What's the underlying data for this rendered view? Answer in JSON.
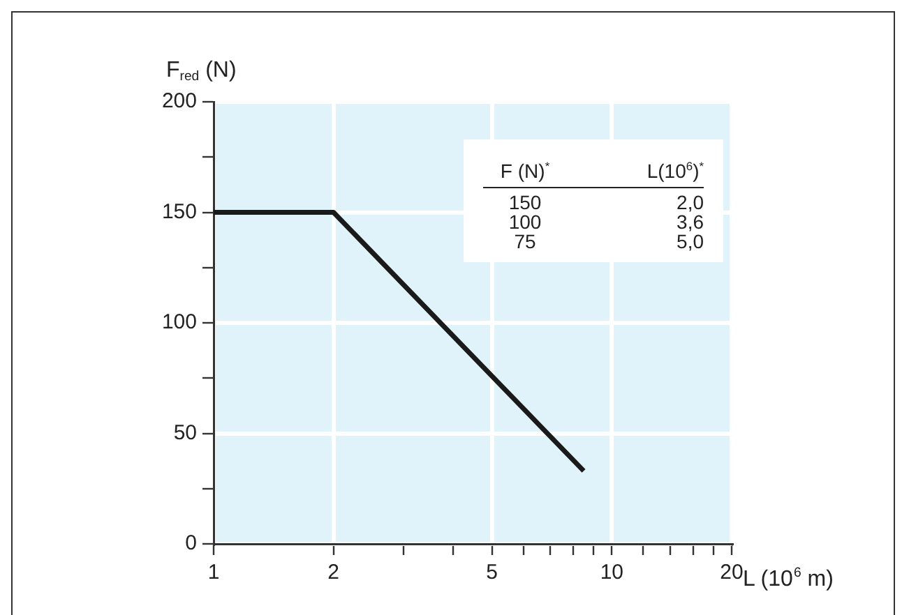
{
  "chart_data": {
    "type": "line",
    "xlabel": "L (10$^{6}$ m)",
    "ylabel": "F$_{red}$ (N)",
    "log": "x",
    "xlim": [
      1,
      20
    ],
    "xticks": [
      1,
      2,
      {
        "value": 3,
        "label": null
      },
      {
        "value": 4,
        "label": null
      },
      5,
      {
        "value": 6,
        "label": null
      },
      {
        "value": 7,
        "label": null
      },
      {
        "value": 8,
        "label": null
      },
      {
        "value": 9,
        "label": null
      },
      10,
      {
        "value": 12,
        "label": null
      },
      {
        "value": 14,
        "label": null
      },
      {
        "value": 16,
        "label": null
      },
      {
        "value": 18,
        "label": null
      },
      20
    ],
    "ylim": [
      0,
      200
    ],
    "yticks": [
      0,
      {
        "value": 25,
        "label": null
      },
      50,
      {
        "value": 75,
        "label": null
      },
      100,
      {
        "value": 125,
        "label": null
      },
      150,
      {
        "value": 175,
        "label": null
      },
      200
    ],
    "grid": true,
    "legend": false,
    "marker": "none",
    "line_style": "solid",
    "series": [
      {
        "color": "#1a1a1a",
        "x": [
          1,
          2,
          8.5
        ],
        "values": [
          150,
          150,
          33
        ]
      }
    ],
    "annotations": [
      "F (N)$^{*}$",
      "L(10$^{6}$)$^{*}$",
      "150",
      "2,0",
      "100",
      "3,6",
      "75",
      "5,0"
    ]
  }
}
